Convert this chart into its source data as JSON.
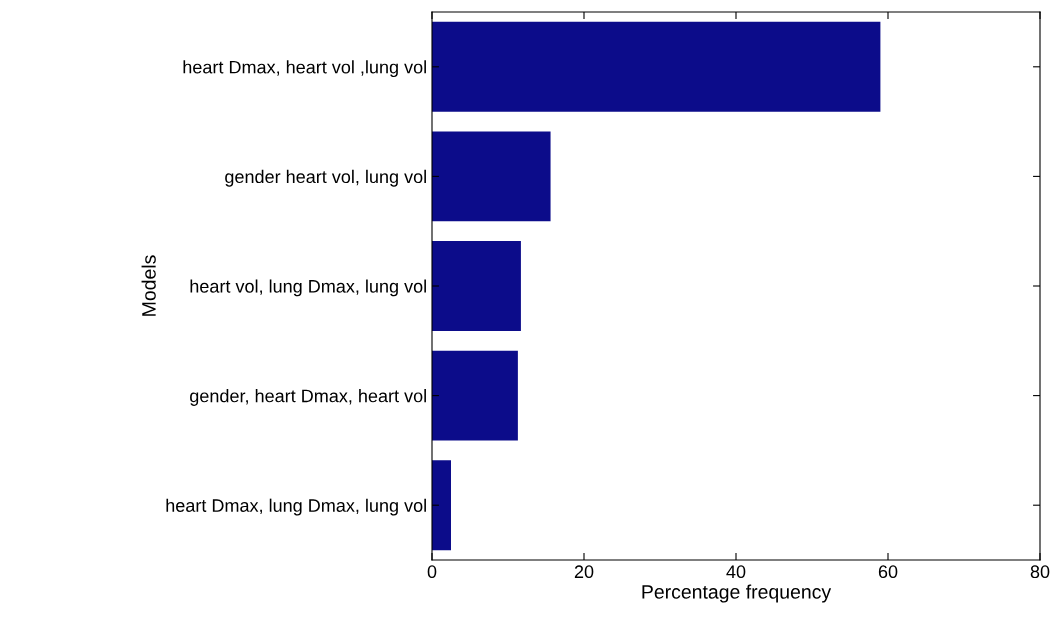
{
  "chart_data": {
    "type": "bar",
    "orientation": "horizontal",
    "xlabel": "Percentage frequency",
    "ylabel": "Models",
    "categories": [
      "heart Dmax, heart vol ,lung vol",
      "gender heart vol, lung vol",
      "heart vol, lung Dmax, lung vol",
      "gender, heart Dmax, heart vol",
      "heart Dmax, lung Dmax, lung vol"
    ],
    "values": [
      59,
      15.6,
      11.7,
      11.3,
      2.5
    ],
    "color": "#0c0c8a",
    "xlim": [
      0,
      80
    ],
    "xticks": [
      0,
      20,
      40,
      60,
      80
    ],
    "grid": false,
    "legend": false
  }
}
